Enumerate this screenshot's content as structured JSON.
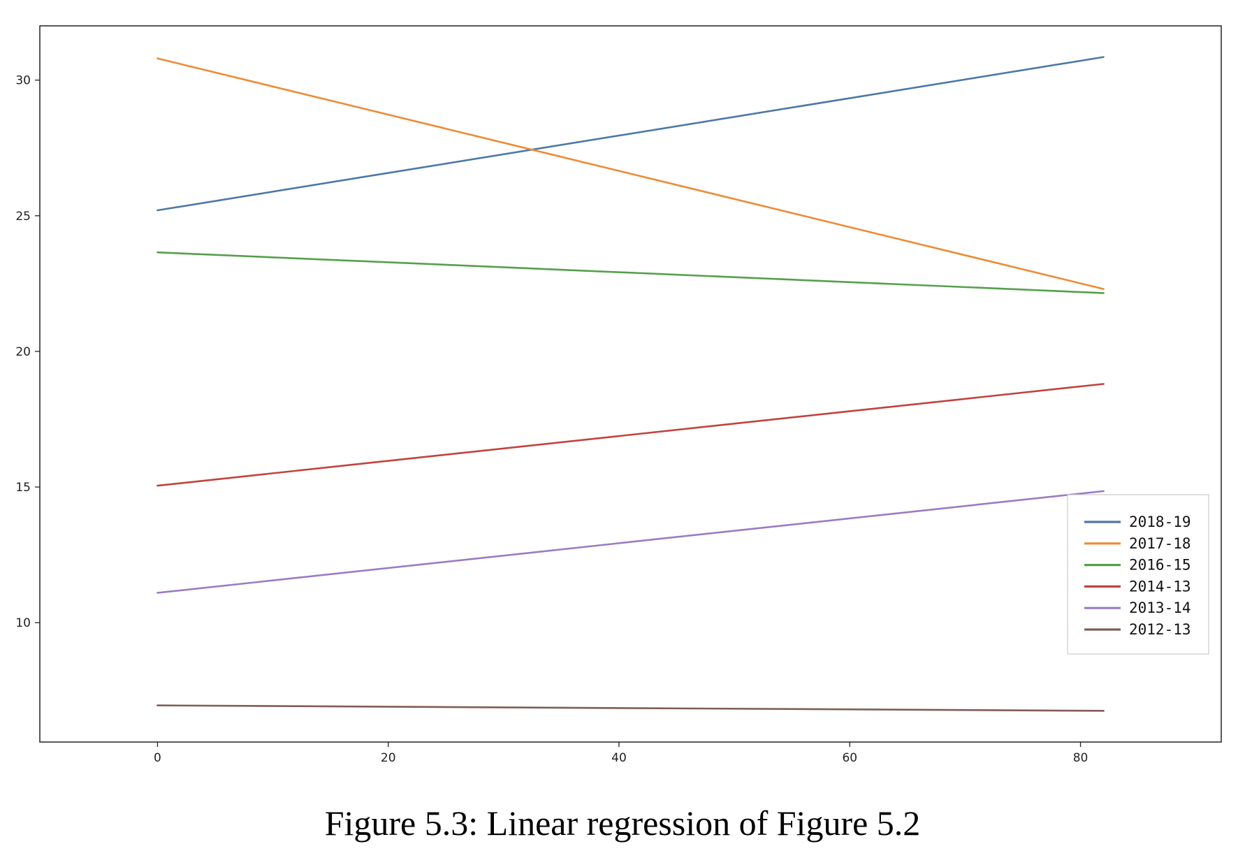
{
  "caption": "Figure 5.3: Linear regression of Figure 5.2",
  "chart_data": {
    "type": "line",
    "title": "",
    "xlabel": "",
    "ylabel": "",
    "xlim": [
      -10.2,
      92.2
    ],
    "ylim": [
      5.6,
      32.0
    ],
    "xticks": [
      0,
      20,
      40,
      60,
      80
    ],
    "yticks": [
      10,
      15,
      20,
      25,
      30
    ],
    "grid": false,
    "legend_position": "center-right",
    "series": [
      {
        "name": "2018-19",
        "color": "#4c78a8",
        "x": [
          0,
          82
        ],
        "y": [
          25.2,
          30.85
        ]
      },
      {
        "name": "2017-18",
        "color": "#ef8a35",
        "x": [
          0,
          82
        ],
        "y": [
          30.8,
          22.3
        ]
      },
      {
        "name": "2016-15",
        "color": "#55a04b",
        "x": [
          0,
          82
        ],
        "y": [
          23.65,
          22.15
        ]
      },
      {
        "name": "2014-13",
        "color": "#c0433f",
        "x": [
          0,
          82
        ],
        "y": [
          15.05,
          18.8
        ]
      },
      {
        "name": "2013-14",
        "color": "#9b7cc2",
        "x": [
          0,
          82
        ],
        "y": [
          11.1,
          14.85
        ]
      },
      {
        "name": "2012-13",
        "color": "#7f5e55",
        "x": [
          0,
          82
        ],
        "y": [
          6.95,
          6.75
        ]
      }
    ]
  }
}
